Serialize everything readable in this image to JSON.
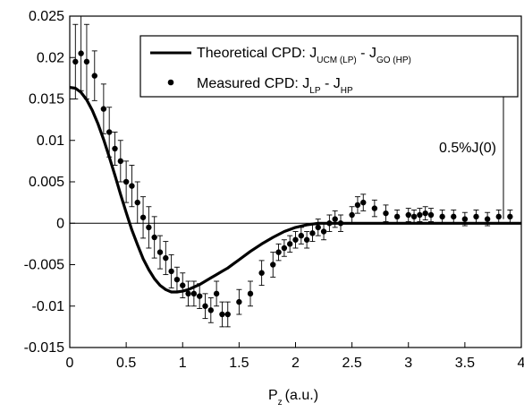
{
  "chart_data": {
    "type": "line",
    "title": "",
    "xlabel": "P",
    "xlabel_sub": "z",
    "xlabel_unit": "(a.u.)",
    "ylabel": "",
    "xlim": [
      0,
      4
    ],
    "ylim": [
      -0.015,
      0.025
    ],
    "x_ticks": [
      "0",
      "0.5",
      "1",
      "1.5",
      "2",
      "2.5",
      "3",
      "3.5",
      "4"
    ],
    "y_ticks": [
      "-0.015",
      "-0.01",
      "-0.005",
      "0",
      "0.005",
      "0.01",
      "0.015",
      "0.02",
      "0.025"
    ],
    "grid": false,
    "legend_position": "top-right",
    "legend": {
      "theory_main": "Theoretical CPD: J",
      "theory_sub1": "UCM (LP)",
      "theory_mid": " - J",
      "theory_sub2": "GO (HP)",
      "measured_main": "Measured CPD: J",
      "measured_sub1": "LP",
      "measured_mid": " - J",
      "measured_sub2": "HP"
    },
    "annotation": {
      "text": "0.5%J(0)",
      "bar_y": [
        0.0005,
        0.0168
      ]
    },
    "series": [
      {
        "style": "line",
        "x": [
          0,
          0.05,
          0.1,
          0.15,
          0.2,
          0.25,
          0.3,
          0.35,
          0.4,
          0.45,
          0.5,
          0.55,
          0.6,
          0.65,
          0.7,
          0.75,
          0.8,
          0.85,
          0.9,
          0.95,
          1.0,
          1.05,
          1.1,
          1.15,
          1.2,
          1.25,
          1.3,
          1.35,
          1.4,
          1.45,
          1.5,
          1.6,
          1.7,
          1.8,
          1.9,
          2.0,
          2.1,
          2.2,
          2.3,
          2.4,
          2.5,
          2.6,
          2.7,
          2.8,
          3.0,
          3.5,
          4.0
        ],
        "y": [
          0.0164,
          0.0163,
          0.0158,
          0.0149,
          0.0136,
          0.012,
          0.0101,
          0.008,
          0.0058,
          0.0035,
          0.0013,
          -0.0008,
          -0.0026,
          -0.0043,
          -0.0056,
          -0.0067,
          -0.0075,
          -0.008,
          -0.0083,
          -0.0083,
          -0.0082,
          -0.008,
          -0.0077,
          -0.0074,
          -0.007,
          -0.0066,
          -0.0062,
          -0.0058,
          -0.0054,
          -0.0049,
          -0.0044,
          -0.0034,
          -0.0025,
          -0.0017,
          -0.001,
          -0.0005,
          -0.0002,
          0.0,
          0.0,
          0.0,
          0.0,
          0.0,
          0.0,
          0.0,
          0.0,
          0.0,
          0.0
        ]
      },
      {
        "style": "points",
        "x": [
          0.05,
          0.1,
          0.15,
          0.22,
          0.3,
          0.35,
          0.4,
          0.45,
          0.5,
          0.55,
          0.6,
          0.65,
          0.7,
          0.75,
          0.8,
          0.85,
          0.9,
          0.95,
          1.0,
          1.05,
          1.1,
          1.15,
          1.2,
          1.25,
          1.3,
          1.35,
          1.4,
          1.5,
          1.6,
          1.7,
          1.8,
          1.85,
          1.9,
          1.95,
          2.0,
          2.05,
          2.1,
          2.15,
          2.2,
          2.25,
          2.3,
          2.35,
          2.4,
          2.5,
          2.55,
          2.6,
          2.7,
          2.8,
          2.9,
          3.0,
          3.05,
          3.1,
          3.15,
          3.2,
          3.3,
          3.4,
          3.5,
          3.6,
          3.7,
          3.8,
          3.9
        ],
        "y": [
          0.0195,
          0.0205,
          0.0195,
          0.0178,
          0.0138,
          0.011,
          0.009,
          0.0075,
          0.005,
          0.0045,
          0.0025,
          0.0007,
          -0.0005,
          -0.0017,
          -0.0035,
          -0.0042,
          -0.0058,
          -0.0068,
          -0.0075,
          -0.0085,
          -0.0085,
          -0.0088,
          -0.01,
          -0.0105,
          -0.0085,
          -0.011,
          -0.011,
          -0.0095,
          -0.0085,
          -0.006,
          -0.005,
          -0.0035,
          -0.003,
          -0.0025,
          -0.002,
          -0.0015,
          -0.002,
          -0.0012,
          -0.0005,
          -0.001,
          0.0,
          0.0005,
          0.0,
          0.001,
          0.0022,
          0.0025,
          0.0018,
          0.0012,
          0.0008,
          0.001,
          0.0008,
          0.001,
          0.0012,
          0.001,
          0.0008,
          0.0008,
          0.0005,
          0.0008,
          0.0005,
          0.0008,
          0.0008
        ],
        "err": [
          0.0045,
          0.0045,
          0.0045,
          0.003,
          0.003,
          0.003,
          0.002,
          0.0025,
          0.0025,
          0.0025,
          0.0025,
          0.0025,
          0.0025,
          0.0025,
          0.002,
          0.002,
          0.002,
          0.0015,
          0.0015,
          0.0015,
          0.0015,
          0.0015,
          0.0015,
          0.0015,
          0.0015,
          0.0015,
          0.0015,
          0.0015,
          0.0015,
          0.0015,
          0.0015,
          0.001,
          0.001,
          0.001,
          0.001,
          0.001,
          0.001,
          0.001,
          0.001,
          0.001,
          0.001,
          0.001,
          0.001,
          0.001,
          0.001,
          0.001,
          0.001,
          0.001,
          0.0008,
          0.0008,
          0.0008,
          0.0008,
          0.0008,
          0.0008,
          0.0008,
          0.0008,
          0.0008,
          0.0008,
          0.0008,
          0.0008,
          0.0008
        ]
      }
    ]
  }
}
